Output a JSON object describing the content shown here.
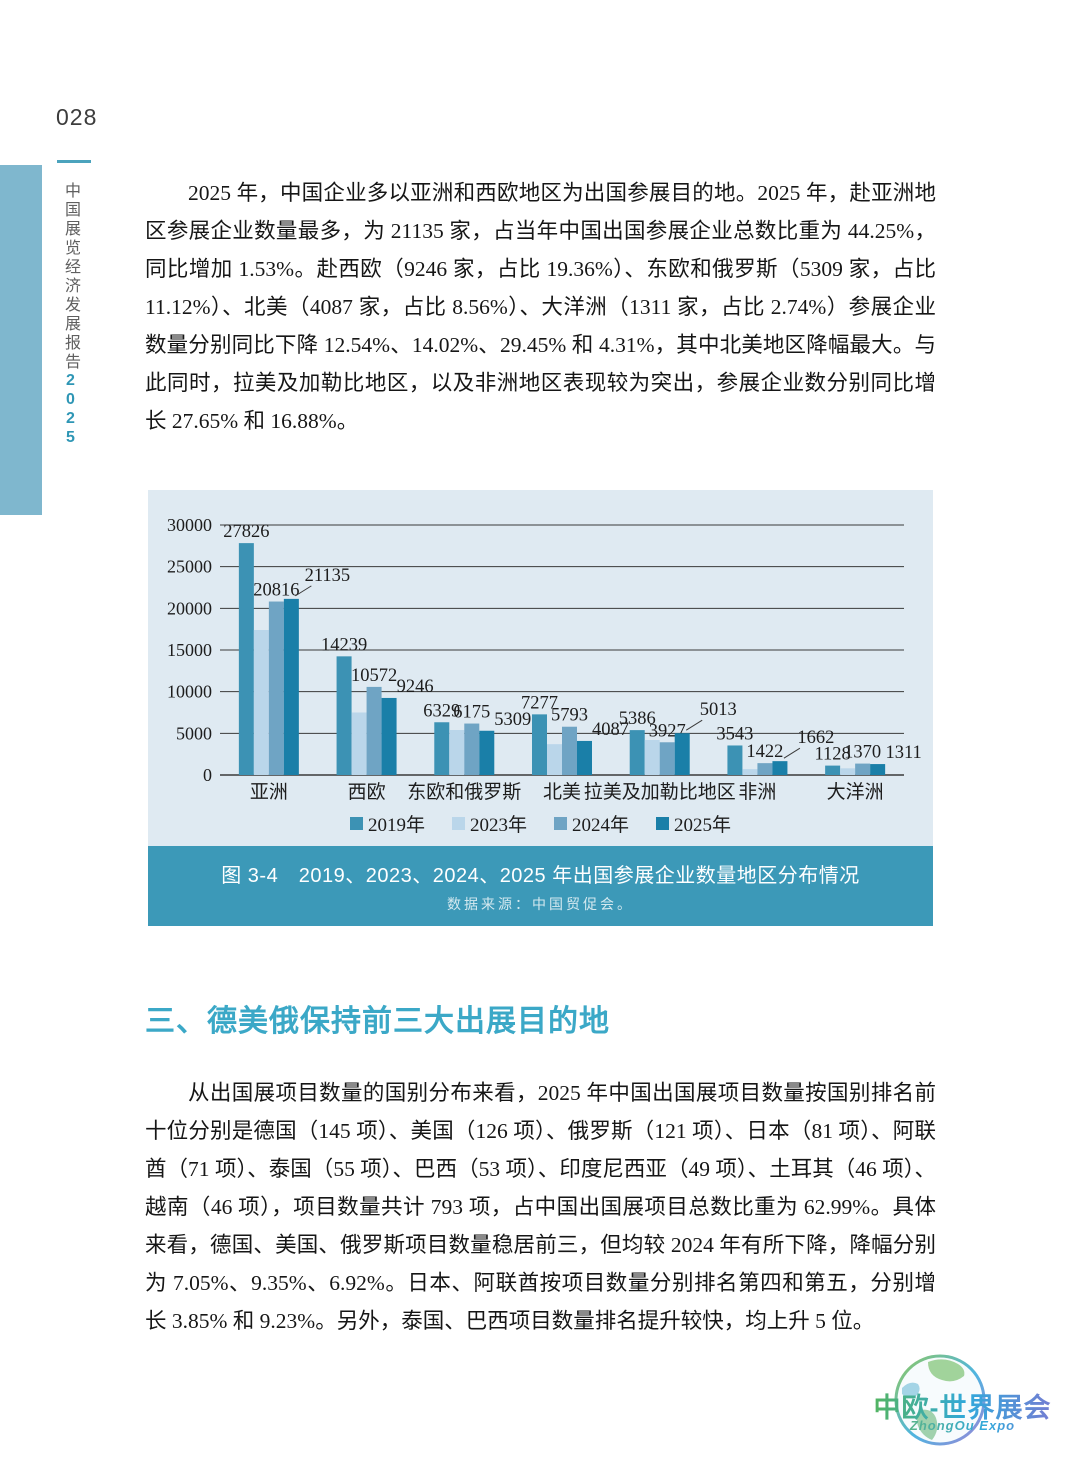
{
  "page": {
    "number": "028",
    "sidebar_title": "中国展览经济发展报告",
    "sidebar_year": "2025"
  },
  "paragraphs": {
    "p1": "2025 年，中国企业多以亚洲和西欧地区为出国参展目的地。2025 年，赴亚洲地区参展企业数量最多，为 21135 家，占当年中国出国参展企业总数比重为 44.25%，同比增加 1.53%。赴西欧（9246 家，占比 19.36%）、东欧和俄罗斯（5309 家，占比 11.12%）、北美（4087 家，占比 8.56%）、大洋洲（1311 家，占比 2.74%）参展企业数量分别同比下降 12.54%、14.02%、29.45% 和 4.31%，其中北美地区降幅最大。与此同时，拉美及加勒比地区，以及非洲地区表现较为突出，参展企业数分别同比增长 27.65% 和 16.88%。",
    "p2": "从出国展项目数量的国别分布来看，2025 年中国出国展项目数量按国别排名前十位分别是德国（145 项）、美国（126 项）、俄罗斯（121 项）、日本（81 项）、阿联酋（71 项）、泰国（55 项）、巴西（53 项）、印度尼西亚（49 项）、土耳其（46 项）、越南（46 项），项目数量共计 793 项，占中国出国展项目总数比重为 62.99%。具体来看，德国、美国、俄罗斯项目数量稳居前三，但均较 2024 年有所下降，降幅分别为 7.05%、9.35%、6.92%。日本、阿联酋按项目数量分别排名第四和第五，分别增长 3.85% 和 9.23%。另外，泰国、巴西项目数量排名提升较快，均上升 5 位。"
  },
  "section": {
    "heading": "三、德美俄保持前三大出展目的地"
  },
  "figure": {
    "caption": "图 3-4　2019、2023、2024、2025 年出国参展企业数量地区分布情况",
    "source": "数据来源：中国贸促会。"
  },
  "chart_data": {
    "type": "bar",
    "title": "",
    "xlabel": "",
    "ylabel": "",
    "categories": [
      "亚洲",
      "西欧",
      "东欧和俄罗斯",
      "北美",
      "拉美及加勒比地区",
      "非洲",
      "大洋洲"
    ],
    "series": [
      {
        "name": "2019年",
        "color": "#3C92B4",
        "show_labels": true,
        "values": [
          27826,
          14239,
          6329,
          7277,
          5386,
          3543,
          1128
        ]
      },
      {
        "name": "2023年",
        "color": "#BAD6EA",
        "show_labels": false,
        "estimated": true,
        "values": [
          17400,
          7500,
          5400,
          3700,
          4200,
          700,
          800
        ]
      },
      {
        "name": "2024年",
        "color": "#6FA4C4",
        "show_labels": true,
        "values": [
          20816,
          10572,
          6175,
          5793,
          3927,
          1422,
          1370
        ]
      },
      {
        "name": "2025年",
        "color": "#1A7FA8",
        "show_labels": true,
        "callouts": [
          true,
          false,
          false,
          false,
          true,
          true,
          false
        ],
        "values": [
          21135,
          9246,
          5309,
          4087,
          5013,
          1662,
          1311
        ]
      }
    ],
    "yticks": [
      0,
      5000,
      10000,
      15000,
      20000,
      25000,
      30000
    ],
    "ylim": [
      0,
      30000
    ],
    "grid": true,
    "axis_color": "#3a3a3a",
    "legend_position": "bottom"
  },
  "logo": {
    "title": "中欧-世界展会",
    "subtitle": "ZhongOu Expo"
  },
  "colors": {
    "text": "#1e1e1e",
    "page_rule": "#4BA3BD",
    "sidebar_bar": "#7FB7CE",
    "sidebar_year": "#2E96B5",
    "panel_bg": "#DFEAF2",
    "caption_band": "#3C99B8",
    "heading": "#3BA8C7"
  }
}
